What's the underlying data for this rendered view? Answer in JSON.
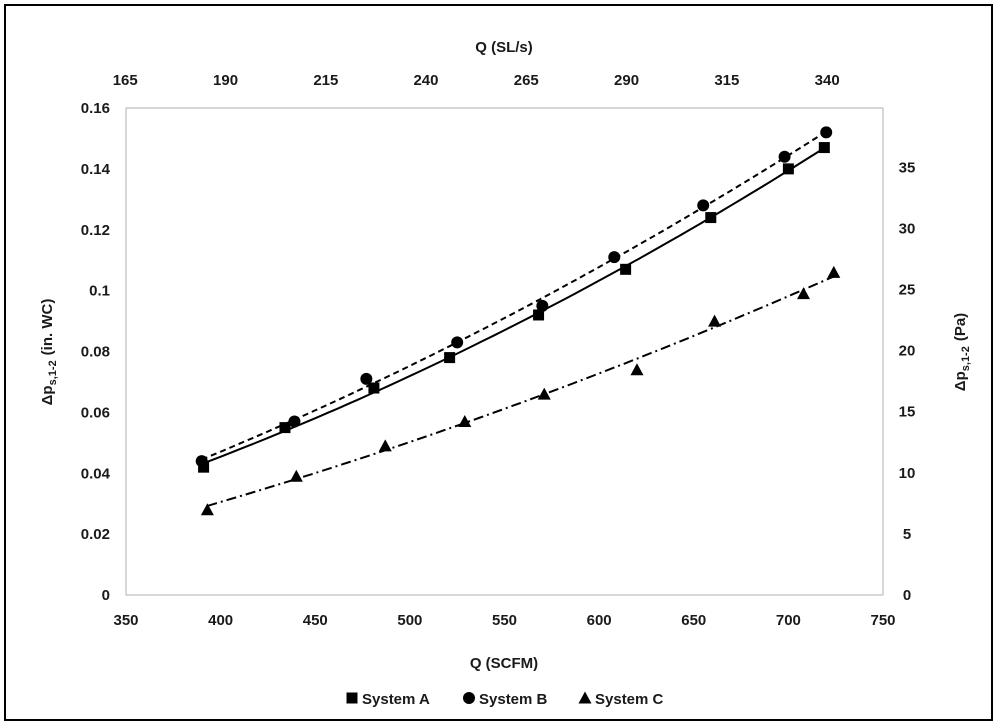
{
  "chart_data": {
    "type": "line",
    "title": "",
    "xlabel": "Q (SCFM)",
    "ylabel_left": {
      "main": "Δp",
      "sub": "s,1-2",
      "unit": "(in. WC)"
    },
    "ylabel_right": {
      "main": "Δp",
      "sub": "s,1-2",
      "unit": "(Pa)"
    },
    "x2label": "Q (SL/s)",
    "xlim": [
      350,
      750
    ],
    "ylim": [
      0,
      0.16
    ],
    "x_ticks": [
      "350",
      "400",
      "450",
      "500",
      "550",
      "600",
      "650",
      "700",
      "750"
    ],
    "y_ticks": [
      "0",
      "0.02",
      "0.04",
      "0.06",
      "0.08",
      "0.1",
      "0.12",
      "0.14",
      "0.16"
    ],
    "x2_ticks": [
      "165",
      "190",
      "215",
      "240",
      "265",
      "290",
      "315",
      "340"
    ],
    "x2_tick_values_scfm": [
      349.6,
      402.6,
      455.6,
      508.5,
      561.5,
      614.5,
      667.5,
      720.5
    ],
    "y2_ticks": [
      "0",
      "5",
      "10",
      "15",
      "20",
      "25",
      "30",
      "35"
    ],
    "y2_tick_values_pa": [
      0,
      5,
      10,
      15,
      20,
      25,
      30,
      35
    ],
    "pa_per_inwc": 249.09,
    "grid": false,
    "legend_position": "bottom",
    "series": [
      {
        "name": "System A",
        "marker": "square",
        "line_style": "solid",
        "x": [
          391,
          434,
          481,
          521,
          568,
          614,
          659,
          700,
          719
        ],
        "y": [
          0.042,
          0.055,
          0.068,
          0.078,
          0.092,
          0.107,
          0.124,
          0.14,
          0.147
        ]
      },
      {
        "name": "System B",
        "marker": "circle",
        "line_style": "dashed",
        "x": [
          390,
          439,
          477,
          525,
          570,
          608,
          655,
          698,
          720
        ],
        "y": [
          0.044,
          0.057,
          0.071,
          0.083,
          0.095,
          0.111,
          0.128,
          0.144,
          0.152
        ]
      },
      {
        "name": "System C",
        "marker": "triangle",
        "line_style": "dashdot",
        "x": [
          393,
          440,
          487,
          529,
          571,
          620,
          661,
          708,
          724
        ],
        "y": [
          0.028,
          0.039,
          0.049,
          0.057,
          0.066,
          0.074,
          0.09,
          0.099,
          0.106
        ]
      }
    ]
  }
}
